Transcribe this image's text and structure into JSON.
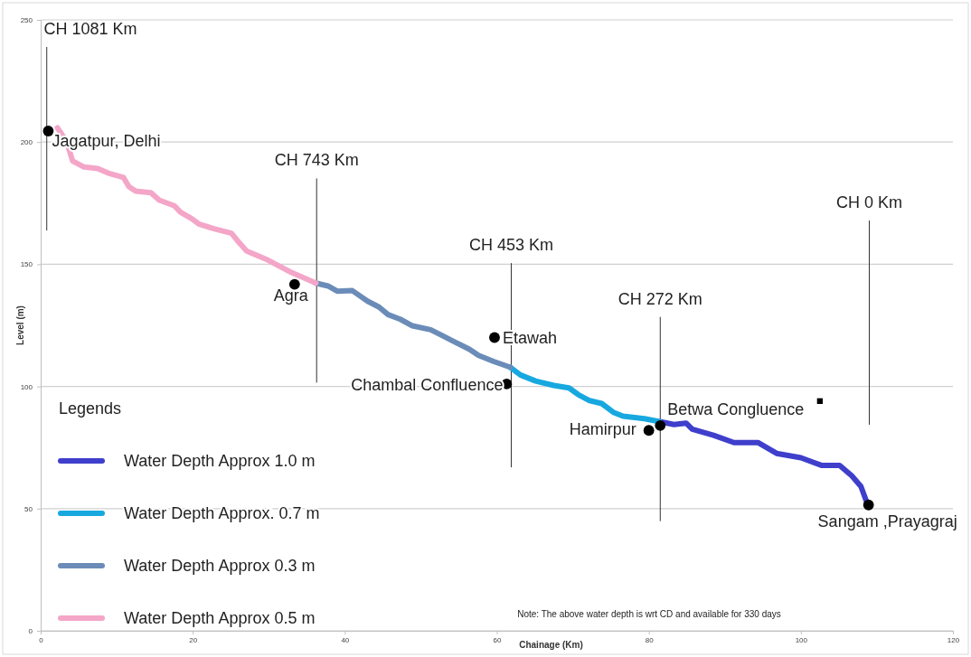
{
  "chart_data": {
    "type": "line",
    "xlabel": "Chainage (Km)",
    "ylabel": "Level (m)",
    "legend_title": "Legends",
    "xlim": [
      0,
      120
    ],
    "xticks": [
      0,
      20,
      40,
      60,
      80,
      100,
      120
    ],
    "ylim": [
      0,
      250
    ],
    "yticks": [
      0,
      50,
      100,
      150,
      200,
      250
    ],
    "grid": "y",
    "legend": "bottom left",
    "line_style": "solid",
    "series": [
      {
        "name": "Water Depth Approx 1.0 m",
        "color": "#3f3fcc",
        "x": [
          81.4,
          83.3,
          84.9,
          85.7,
          88.5,
          91.2,
          94.4,
          96.8,
          100.0,
          102.7,
          105.1,
          106.7,
          107.9,
          108.7
        ],
        "values": [
          85.6,
          84.4,
          85.0,
          82.5,
          80.0,
          77.0,
          77.0,
          72.6,
          70.8,
          67.7,
          67.7,
          63.4,
          59.1,
          52.3
        ]
      },
      {
        "name": "Water Depth Approx. 0.7 m",
        "color": "#17a8e0",
        "x": [
          61.8,
          63.1,
          65.1,
          67.5,
          69.5,
          70.7,
          72.2,
          73.8,
          75.4,
          76.6,
          79.4,
          81.4
        ],
        "values": [
          107.8,
          104.7,
          102.2,
          100.4,
          99.4,
          96.7,
          94.2,
          93.0,
          89.3,
          87.8,
          86.8,
          85.6
        ]
      },
      {
        "name": "Water Depth Approx 0.3 m",
        "color": "#6b8cb8",
        "x": [
          36.2,
          37.8,
          39.0,
          41.0,
          43.0,
          44.5,
          45.7,
          47.3,
          48.9,
          51.3,
          52.9,
          54.4,
          56.4,
          57.6,
          59.6,
          61.8
        ],
        "values": [
          142.3,
          141.1,
          139.0,
          139.2,
          134.9,
          132.5,
          129.4,
          127.5,
          124.8,
          123.2,
          120.7,
          118.3,
          115.2,
          112.7,
          110.2,
          107.8
        ]
      },
      {
        "name": "Water Depth Approx 0.5 m",
        "color": "#f4a6c8",
        "x": [
          2.2,
          3.4,
          4.2,
          5.7,
          7.5,
          8.9,
          10.9,
          11.6,
          12.5,
          14.5,
          15.6,
          17.6,
          18.4,
          19.8,
          20.8,
          22.8,
          25.1,
          25.9,
          27.1,
          29.9,
          33.0,
          36.2
        ],
        "values": [
          205.8,
          200.3,
          192.3,
          189.8,
          189.2,
          187.3,
          185.5,
          181.8,
          179.9,
          179.3,
          176.2,
          173.9,
          171.3,
          168.8,
          166.5,
          164.5,
          162.7,
          159.6,
          155.4,
          151.7,
          146.6,
          142.3
        ]
      },
      {
        "type": "scatter",
        "marker": "circle",
        "color": "#000000",
        "x": [
          1.0,
          33.4,
          59.7,
          61.3,
          80.0,
          81.5,
          108.9
        ],
        "values": [
          204.5,
          141.8,
          120.0,
          101.0,
          82.0,
          84.0,
          51.5
        ]
      },
      {
        "type": "scatter",
        "marker": "square",
        "color": "#000000",
        "x": [
          102.5
        ],
        "values": [
          94.0
        ]
      }
    ],
    "ref_lines": [
      {
        "axis": "x",
        "value": 0.8,
        "color": "#333333",
        "label": "CH 1081 Km"
      },
      {
        "axis": "x",
        "value": 36.3,
        "color": "#333333",
        "label": "CH 743 Km"
      },
      {
        "axis": "x",
        "value": 61.9,
        "color": "#333333",
        "label": "CH 453 Km"
      },
      {
        "axis": "x",
        "value": 81.5,
        "color": "#333333",
        "label": "CH 272 Km"
      },
      {
        "axis": "x",
        "value": 109.0,
        "color": "#333333",
        "label": "CH 0 Km"
      }
    ],
    "annotations": [
      {
        "text": "Jagatpur, Delhi",
        "x": 1.0,
        "y": 204.5
      },
      {
        "text": "Agra",
        "x": 33.4,
        "y": 141.8
      },
      {
        "text": "Etawah",
        "x": 59.7,
        "y": 120.0
      },
      {
        "text": "Chambal Confluence",
        "x": 61.3,
        "y": 101.0
      },
      {
        "text": "Hamirpur",
        "x": 80.0,
        "y": 82.0
      },
      {
        "text": "Betwa Congluence",
        "x": 81.5,
        "y": 84.0
      },
      {
        "text": "Sangam ,Prayagraj",
        "x": 108.9,
        "y": 51.5
      },
      "Note: The above water depth is wrt CD and available for 330 days"
    ]
  }
}
